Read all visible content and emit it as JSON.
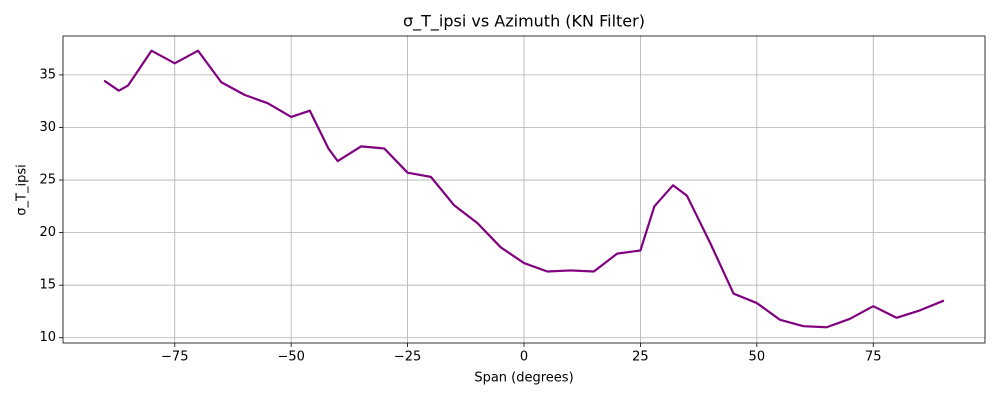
{
  "chart_data": {
    "type": "line",
    "title": "σ_T_ipsi vs Azimuth (KN Filter)",
    "x_label": "Span (degrees)",
    "y_label": "σ_T_ipsi",
    "x": [
      -90,
      -87,
      -85,
      -80,
      -75,
      -70,
      -65,
      -60,
      -55,
      -50,
      -46,
      -42,
      -40,
      -35,
      -30,
      -25,
      -20,
      -15,
      -10,
      -5,
      0,
      5,
      10,
      15,
      20,
      25,
      28,
      32,
      35,
      40,
      45,
      50,
      55,
      60,
      65,
      70,
      75,
      80,
      85,
      90
    ],
    "series": [
      {
        "name": "σ_T_ipsi",
        "color": "#800080",
        "values": [
          34.4,
          33.5,
          34.0,
          37.3,
          36.1,
          37.3,
          34.3,
          33.1,
          32.3,
          31.0,
          31.6,
          28.0,
          26.8,
          28.2,
          28.0,
          25.7,
          25.3,
          22.6,
          20.9,
          18.6,
          17.1,
          16.3,
          16.4,
          16.3,
          18.0,
          18.3,
          22.5,
          24.5,
          23.5,
          19.0,
          14.2,
          13.3,
          11.7,
          11.1,
          11.0,
          11.8,
          13.0,
          11.9,
          12.6,
          13.5
        ]
      }
    ],
    "xlim": [
      -99,
      99
    ],
    "ylim": [
      9.5,
      38.7
    ],
    "xticks": [
      {
        "value": -75,
        "label": "−75"
      },
      {
        "value": -50,
        "label": "−50"
      },
      {
        "value": -25,
        "label": "−25"
      },
      0,
      25,
      50,
      75
    ],
    "yticks": [
      10,
      15,
      20,
      25,
      30,
      35
    ],
    "grid": true
  }
}
